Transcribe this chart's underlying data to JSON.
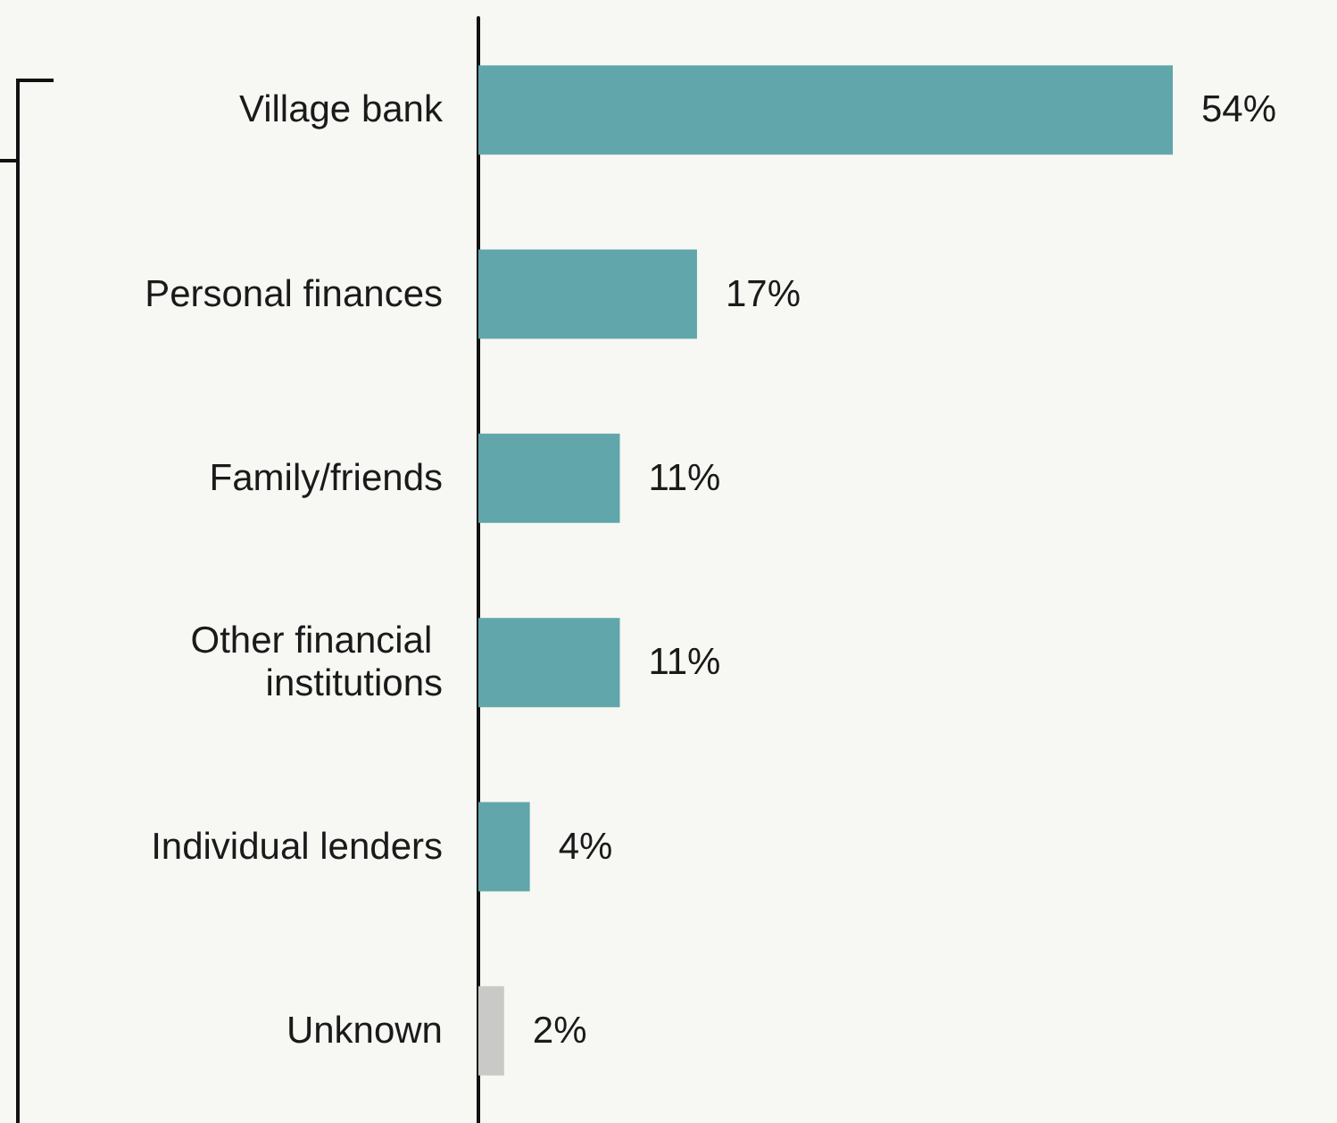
{
  "chart_data": {
    "type": "bar",
    "orientation": "horizontal",
    "categories": [
      "Village bank",
      "Personal finances",
      "Family/friends",
      "Other financial institutions",
      "Individual lenders",
      "Unknown"
    ],
    "values": [
      54,
      17,
      11,
      11,
      4,
      2
    ],
    "colors": [
      "#60a6aa",
      "#60a6aa",
      "#60a6aa",
      "#60a6aa",
      "#60a6aa",
      "#c9c9c7"
    ],
    "value_labels": [
      "54%",
      "17%",
      "11%",
      "11%",
      "4%",
      "2%"
    ]
  }
}
